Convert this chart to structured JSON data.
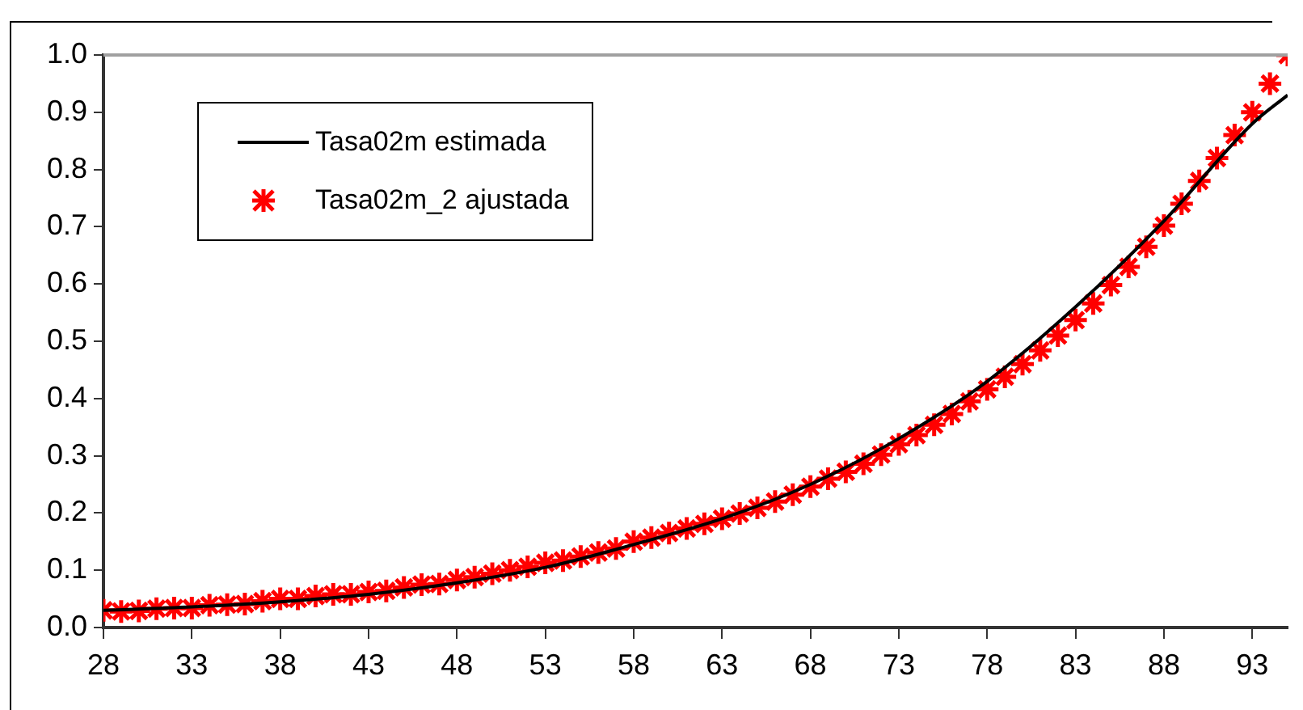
{
  "chart_data": {
    "type": "scatter",
    "xlim": [
      28,
      95
    ],
    "xticks": [
      28,
      33,
      38,
      43,
      48,
      53,
      58,
      63,
      68,
      73,
      78,
      83,
      88,
      93
    ],
    "ylim": [
      0,
      1.0
    ],
    "yticks": [
      {
        "value": 0,
        "label": "0.0"
      },
      0.1,
      0.2,
      0.3,
      0.4,
      0.5,
      0.6,
      0.7,
      0.8,
      0.9,
      {
        "value": 1,
        "label": "1.0"
      }
    ],
    "grid": false,
    "legend": "top left",
    "series": [
      {
        "name": "Tasa02m estimada",
        "type": "line",
        "color": "#000000",
        "marker": "none",
        "line_style": "solid",
        "x": [
          28,
          33,
          38,
          43,
          48,
          53,
          58,
          63,
          68,
          73,
          78,
          83,
          88,
          93,
          95
        ],
        "values": [
          0.03,
          0.036,
          0.045,
          0.058,
          0.078,
          0.105,
          0.145,
          0.19,
          0.25,
          0.33,
          0.43,
          0.56,
          0.71,
          0.88,
          0.93
        ]
      },
      {
        "name": "Tasa02m_2 ajustada",
        "type": "scatter",
        "color": "#ff0000",
        "marker": "cross",
        "x": [
          28,
          29,
          30,
          31,
          32,
          33,
          34,
          35,
          36,
          37,
          38,
          39,
          40,
          41,
          42,
          43,
          44,
          45,
          46,
          47,
          48,
          49,
          50,
          51,
          52,
          53,
          54,
          55,
          56,
          57,
          58,
          59,
          60,
          61,
          62,
          63,
          64,
          65,
          66,
          67,
          68,
          69,
          70,
          71,
          72,
          73,
          74,
          75,
          76,
          77,
          78,
          79,
          80,
          81,
          82,
          83,
          84,
          85,
          86,
          87,
          88,
          89,
          90,
          91,
          92,
          93,
          94,
          95
        ],
        "values": [
          0.03,
          0.028,
          0.029,
          0.033,
          0.034,
          0.034,
          0.039,
          0.04,
          0.041,
          0.046,
          0.05,
          0.05,
          0.055,
          0.058,
          0.058,
          0.062,
          0.064,
          0.07,
          0.075,
          0.076,
          0.083,
          0.088,
          0.094,
          0.1,
          0.106,
          0.113,
          0.117,
          0.124,
          0.131,
          0.138,
          0.15,
          0.157,
          0.165,
          0.173,
          0.181,
          0.19,
          0.199,
          0.209,
          0.22,
          0.232,
          0.246,
          0.26,
          0.272,
          0.286,
          0.302,
          0.32,
          0.336,
          0.354,
          0.373,
          0.395,
          0.416,
          0.438,
          0.46,
          0.484,
          0.51,
          0.537,
          0.566,
          0.598,
          0.63,
          0.665,
          0.702,
          0.74,
          0.78,
          0.82,
          0.86,
          0.9,
          0.95,
          1.0
        ]
      }
    ]
  }
}
